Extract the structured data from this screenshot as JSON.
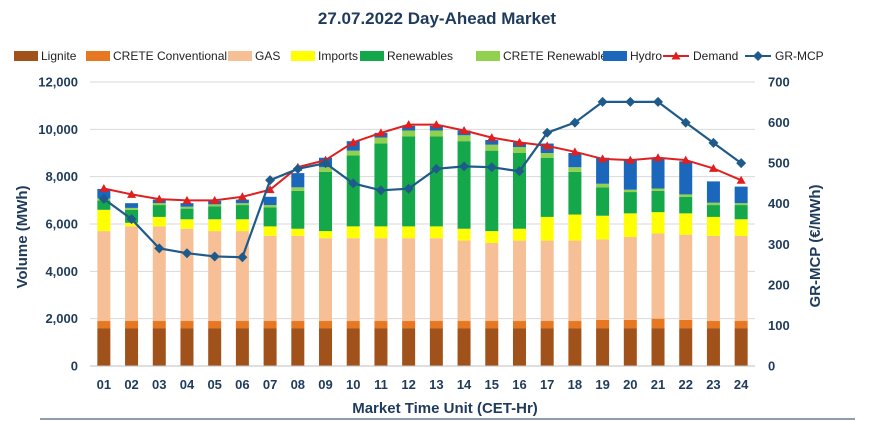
{
  "chart_data": {
    "type": "bar",
    "title": "27.07.2022  Day-Ahead Market",
    "xlabel": "Market Time Unit (CET-Hr)",
    "ylabel": "Volume (MWh)",
    "y2label": "GR-MCP (€/MWh)",
    "ylim": [
      0,
      12000
    ],
    "y2lim": [
      0,
      700
    ],
    "yticks": [
      "0",
      "2,000",
      "4,000",
      "6,000",
      "8,000",
      "10,000",
      "12,000"
    ],
    "y2ticks": [
      "0",
      "100",
      "200",
      "300",
      "400",
      "500",
      "600",
      "700"
    ],
    "categories": [
      "01",
      "02",
      "03",
      "04",
      "05",
      "06",
      "07",
      "08",
      "09",
      "10",
      "11",
      "12",
      "13",
      "14",
      "15",
      "16",
      "17",
      "18",
      "19",
      "20",
      "21",
      "22",
      "23",
      "24"
    ],
    "legend_position": "top",
    "series": [
      {
        "name": "Lignite",
        "kind": "bar",
        "color": "#a0521a",
        "values": [
          1600,
          1600,
          1600,
          1600,
          1600,
          1600,
          1600,
          1600,
          1600,
          1600,
          1600,
          1600,
          1600,
          1600,
          1600,
          1600,
          1600,
          1600,
          1600,
          1600,
          1600,
          1600,
          1600,
          1600
        ]
      },
      {
        "name": "CRETE Conventional",
        "kind": "bar",
        "color": "#e87722",
        "values": [
          300,
          300,
          300,
          300,
          300,
          300,
          300,
          300,
          300,
          300,
          300,
          300,
          300,
          300,
          300,
          300,
          300,
          300,
          350,
          350,
          400,
          350,
          300,
          300
        ]
      },
      {
        "name": "GAS",
        "kind": "bar",
        "color": "#f7bf95",
        "values": [
          3800,
          4000,
          4000,
          3900,
          3800,
          3800,
          3600,
          3600,
          3500,
          3500,
          3500,
          3500,
          3500,
          3400,
          3300,
          3400,
          3400,
          3400,
          3400,
          3500,
          3600,
          3600,
          3600,
          3600
        ]
      },
      {
        "name": "Imports",
        "kind": "bar",
        "color": "#ffff00",
        "values": [
          900,
          150,
          400,
          400,
          500,
          500,
          400,
          300,
          300,
          500,
          500,
          500,
          500,
          500,
          500,
          500,
          1000,
          1100,
          1000,
          1000,
          900,
          900,
          800,
          700
        ]
      },
      {
        "name": "Renewables",
        "kind": "bar",
        "color": "#14a84a",
        "values": [
          400,
          550,
          500,
          450,
          550,
          600,
          800,
          1600,
          2500,
          3000,
          3500,
          3800,
          3800,
          3700,
          3400,
          3200,
          2500,
          1800,
          1200,
          900,
          900,
          700,
          500,
          600
        ]
      },
      {
        "name": "CRETE Renewables",
        "kind": "bar",
        "color": "#92d050",
        "values": [
          80,
          80,
          80,
          80,
          80,
          80,
          100,
          150,
          200,
          200,
          250,
          250,
          250,
          250,
          250,
          250,
          200,
          200,
          150,
          100,
          100,
          100,
          100,
          80
        ]
      },
      {
        "name": "Hydro",
        "kind": "bar",
        "color": "#1a67bb",
        "values": [
          400,
          200,
          150,
          150,
          150,
          150,
          350,
          600,
          400,
          400,
          200,
          200,
          200,
          200,
          200,
          200,
          400,
          600,
          1100,
          1300,
          1300,
          1400,
          900,
          700
        ]
      },
      {
        "name": "Demand",
        "kind": "line",
        "axis": "left",
        "color": "#e02020",
        "values": [
          7500,
          7250,
          7050,
          7000,
          7000,
          7150,
          7450,
          8400,
          8700,
          9450,
          9850,
          10200,
          10200,
          9950,
          9650,
          9450,
          9300,
          9050,
          8750,
          8700,
          8800,
          8700,
          8350,
          7850
        ]
      },
      {
        "name": "GR-MCP",
        "kind": "line",
        "axis": "right",
        "color": "#1f5b8a",
        "values": [
          412,
          362,
          290,
          278,
          270,
          268,
          458,
          486,
          500,
          450,
          433,
          437,
          486,
          492,
          490,
          480,
          575,
          600,
          651,
          651,
          651,
          600,
          550,
          500
        ]
      }
    ]
  }
}
